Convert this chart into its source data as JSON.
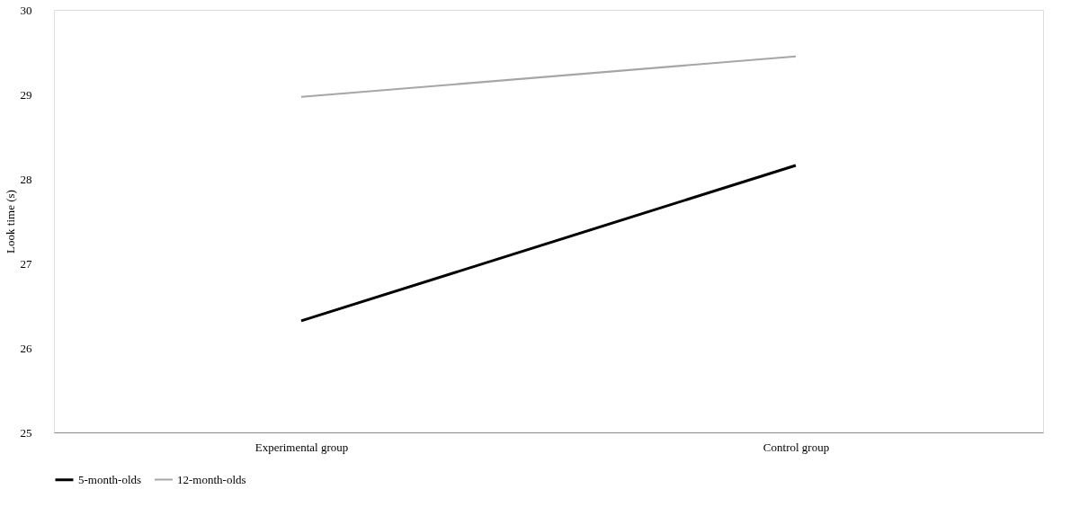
{
  "chart_data": {
    "type": "line",
    "ylabel": "Look time (s)",
    "categories": [
      "Experimental group",
      "Control group"
    ],
    "series": [
      {
        "name": "5-month-olds",
        "color": "#000000",
        "values": [
          26.32,
          28.16
        ]
      },
      {
        "name": "12-month-olds",
        "color": "#a6a6a6",
        "values": [
          28.97,
          29.45
        ]
      }
    ],
    "ylim": [
      25,
      30
    ],
    "yticks": [
      25,
      26,
      27,
      28,
      29,
      30
    ],
    "grid": false,
    "legend": "bottom"
  }
}
